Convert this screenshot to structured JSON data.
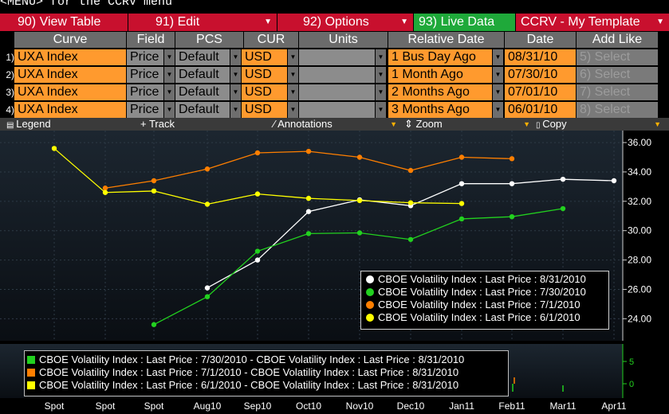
{
  "topline": "<MENU> for the CCRV menu",
  "menu": [
    {
      "label": "90) View Table",
      "arrow": false
    },
    {
      "label": "91) Edit",
      "arrow": true
    },
    {
      "label": "92) Options",
      "arrow": true
    },
    {
      "label": "93) Live Data",
      "arrow": false
    },
    {
      "label": "CCRV - My Template",
      "arrow": true
    }
  ],
  "columns": [
    "Curve",
    "Field",
    "PCS",
    "CUR",
    "Units",
    "Relative Date",
    "Date",
    "Add Like"
  ],
  "rows": [
    {
      "num": "1)",
      "curve": "UXA Index",
      "field": "Price",
      "pcs": "Default",
      "cur": "USD",
      "units": "",
      "relative": "1 Bus Day Ago",
      "date": "08/31/10",
      "add": "5)  Select"
    },
    {
      "num": "2)",
      "curve": "UXA Index",
      "field": "Price",
      "pcs": "Default",
      "cur": "USD",
      "units": "",
      "relative": "1 Month Ago",
      "date": "07/30/10",
      "add": "6)  Select"
    },
    {
      "num": "3)",
      "curve": "UXA Index",
      "field": "Price",
      "pcs": "Default",
      "cur": "USD",
      "units": "",
      "relative": "2 Months Ago",
      "date": "07/01/10",
      "add": "7)  Select"
    },
    {
      "num": "4)",
      "curve": "UXA Index",
      "field": "Price",
      "pcs": "Default",
      "cur": "USD",
      "units": "",
      "relative": "3 Months Ago",
      "date": "06/01/10",
      "add": "8)  Select"
    }
  ],
  "toolbar": {
    "legend": "Legend",
    "track": "Track",
    "annotations": "Annotations",
    "zoom": "Zoom",
    "copy": "Copy"
  },
  "colors": {
    "white": "#ffffff",
    "green": "#22d11f",
    "orange": "#ff7f00",
    "yellow": "#ffff00"
  },
  "chart_data": {
    "type": "line",
    "x_labels": [
      "Spot",
      "Spot",
      "Spot",
      "Aug10",
      "Sep10",
      "Oct10",
      "Nov10",
      "Dec10",
      "Jan11",
      "Feb11",
      "Mar11",
      "Apr11"
    ],
    "y_ticks": [
      "36.00",
      "34.00",
      "32.00",
      "30.00",
      "28.00",
      "26.00",
      "24.00"
    ],
    "ylim": [
      22.5,
      36.6
    ],
    "series": [
      {
        "name": "CBOE Volatility Index : Last Price : 8/31/2010",
        "color": "#ffffff",
        "points": [
          [
            "Aug10",
            26.1
          ],
          [
            "Sep10",
            28.0
          ],
          [
            "Oct10",
            31.3
          ],
          [
            "Nov10",
            32.1
          ],
          [
            "Dec10",
            31.7
          ],
          [
            "Jan11",
            33.2
          ],
          [
            "Feb11",
            33.2
          ],
          [
            "Mar11",
            33.5
          ],
          [
            "Apr11",
            33.4
          ]
        ]
      },
      {
        "name": "CBOE Volatility Index : Last Price : 7/30/2010",
        "color": "#22d11f",
        "points": [
          [
            "Spot3",
            23.6
          ],
          [
            "Aug10",
            25.5
          ],
          [
            "Sep10",
            28.6
          ],
          [
            "Oct10",
            29.8
          ],
          [
            "Nov10",
            29.85
          ],
          [
            "Dec10",
            29.4
          ],
          [
            "Jan11",
            30.8
          ],
          [
            "Feb11",
            30.95
          ],
          [
            "Mar11",
            31.5
          ]
        ]
      },
      {
        "name": "CBOE Volatility Index : Last Price : 7/1/2010",
        "color": "#ff7f00",
        "points": [
          [
            "Spot2",
            32.9
          ],
          [
            "Spot3",
            33.4
          ],
          [
            "Aug10",
            34.2
          ],
          [
            "Sep10",
            35.3
          ],
          [
            "Oct10",
            35.4
          ],
          [
            "Nov10",
            35.0
          ],
          [
            "Dec10",
            34.1
          ],
          [
            "Jan11",
            35.0
          ],
          [
            "Feb11",
            34.9
          ]
        ]
      },
      {
        "name": "CBOE Volatility Index : Last Price : 6/1/2010",
        "color": "#ffff00",
        "points": [
          [
            "Spot1",
            35.6
          ],
          [
            "Spot2",
            32.6
          ],
          [
            "Spot3",
            32.7
          ],
          [
            "Aug10",
            31.8
          ],
          [
            "Sep10",
            32.5
          ],
          [
            "Oct10",
            32.2
          ],
          [
            "Nov10",
            32.05
          ],
          [
            "Dec10",
            31.9
          ],
          [
            "Jan11",
            31.85
          ]
        ]
      }
    ],
    "sub_legend": [
      {
        "label": "CBOE Volatility Index : Last Price : 7/30/2010 - CBOE Volatility Index : Last Price : 8/31/2010",
        "color": "#22d11f"
      },
      {
        "label": "CBOE Volatility Index : Last Price : 7/1/2010  - CBOE Volatility Index : Last Price : 8/31/2010",
        "color": "#ff7f00"
      },
      {
        "label": "CBOE Volatility Index : Last Price : 6/1/2010  - CBOE Volatility Index : Last Price : 8/31/2010",
        "color": "#ffff00"
      }
    ],
    "sub_y_ticks": [
      "5",
      "0"
    ]
  }
}
